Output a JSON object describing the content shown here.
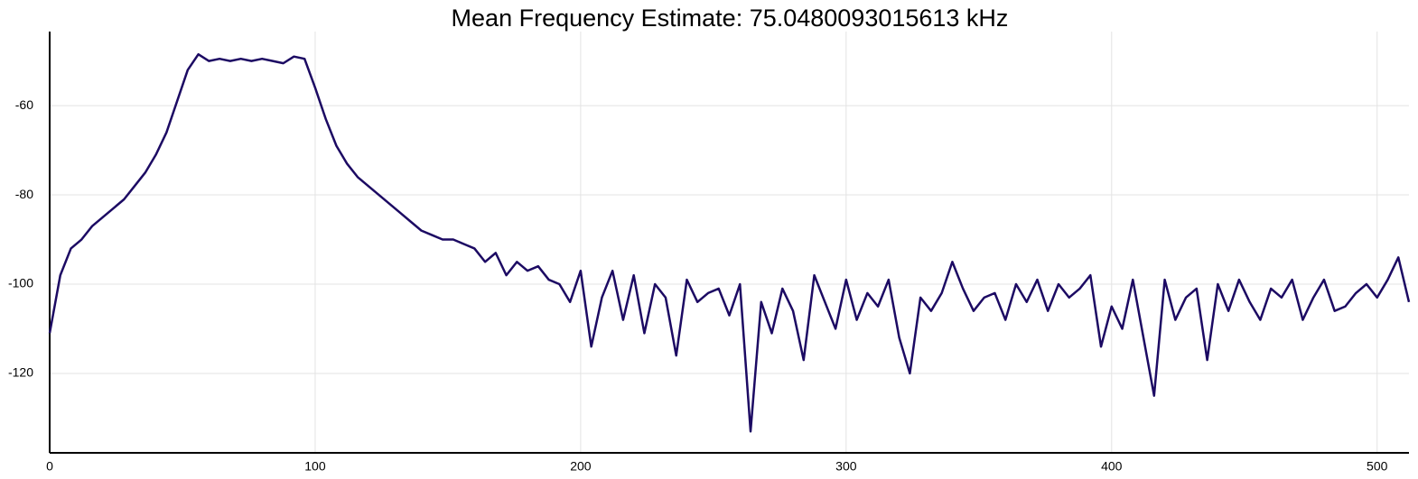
{
  "chart_data": {
    "type": "line",
    "title": "Mean Frequency Estimate: 75.0480093015613 kHz",
    "x": [
      0,
      4,
      8,
      12,
      16,
      20,
      24,
      28,
      32,
      36,
      40,
      44,
      48,
      52,
      56,
      60,
      64,
      68,
      72,
      76,
      80,
      84,
      88,
      92,
      96,
      100,
      104,
      108,
      112,
      116,
      120,
      124,
      128,
      132,
      136,
      140,
      144,
      148,
      152,
      156,
      160,
      164,
      168,
      172,
      176,
      180,
      184,
      188,
      192,
      196,
      200,
      204,
      208,
      212,
      216,
      220,
      224,
      228,
      232,
      236,
      240,
      244,
      248,
      252,
      256,
      260,
      264,
      268,
      272,
      276,
      280,
      284,
      288,
      292,
      296,
      300,
      304,
      308,
      312,
      316,
      320,
      324,
      328,
      332,
      336,
      340,
      344,
      348,
      352,
      356,
      360,
      364,
      368,
      372,
      376,
      380,
      384,
      388,
      392,
      396,
      400,
      404,
      408,
      412,
      416,
      420,
      424,
      428,
      432,
      436,
      440,
      444,
      448,
      452,
      456,
      460,
      464,
      468,
      472,
      476,
      480,
      484,
      488,
      492,
      496,
      500,
      504,
      508,
      512
    ],
    "series": [
      {
        "color": "#1c0a63",
        "values": [
          -111,
          -98,
          -92,
          -90,
          -87,
          -85,
          -83,
          -81,
          -78,
          -75,
          -71,
          -66,
          -59,
          -52,
          -48.5,
          -50,
          -49.5,
          -50,
          -49.5,
          -50,
          -49.5,
          -50,
          -50.5,
          -49,
          -49.5,
          -56,
          -63,
          -69,
          -73,
          -76,
          -78,
          -80,
          -82,
          -84,
          -86,
          -88,
          -89,
          -90,
          -90,
          -91,
          -92,
          -95,
          -93,
          -98,
          -95,
          -97,
          -96,
          -99,
          -100,
          -104,
          -97,
          -114,
          -103,
          -97,
          -108,
          -98,
          -111,
          -100,
          -103,
          -116,
          -99,
          -104,
          -102,
          -101,
          -107,
          -100,
          -133,
          -104,
          -111,
          -101,
          -106,
          -117,
          -98,
          -104,
          -110,
          -99,
          -108,
          -102,
          -105,
          -99,
          -112,
          -120,
          -103,
          -106,
          -102,
          -95,
          -101,
          -106,
          -103,
          -102,
          -108,
          -100,
          -104,
          -99,
          -106,
          -100,
          -103,
          -101,
          -98,
          -114,
          -105,
          -110,
          -99,
          -112,
          -125,
          -99,
          -108,
          -103,
          -101,
          -117,
          -100,
          -106,
          -99,
          -104,
          -108,
          -101,
          -103,
          -99,
          -108,
          -103,
          -99,
          -106,
          -105,
          -102,
          -100,
          -103,
          -99,
          -94,
          -104
        ]
      }
    ],
    "xlim": [
      0,
      512
    ],
    "ylim": [
      -137.8,
      -43.4
    ],
    "xticks": [
      0,
      100,
      200,
      300,
      400,
      500
    ],
    "yticks": [
      -60,
      -80,
      -100,
      -120
    ],
    "grid": true
  }
}
